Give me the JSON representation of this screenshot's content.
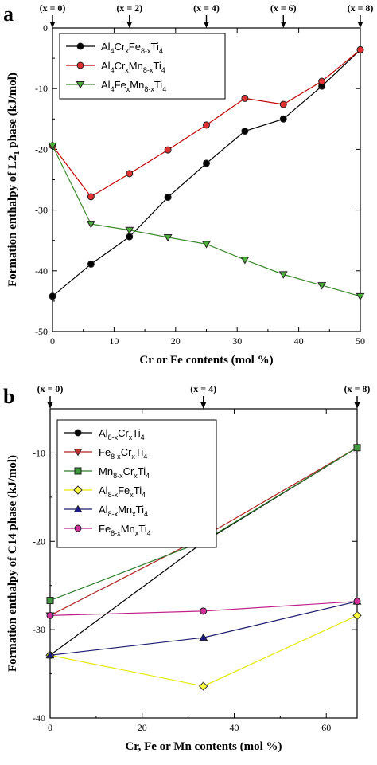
{
  "chart_data": [
    {
      "panel": "a",
      "type": "line",
      "xlabel": "Cr or Fe contents (mol %)",
      "ylabel_main": "Formation enthalpy of L2",
      "ylabel_sub": "1",
      "ylabel_end": " phase (kJ/mol)",
      "xlim": [
        0,
        50
      ],
      "ylim": [
        -50,
        0
      ],
      "xticks": [
        0,
        10,
        20,
        30,
        40,
        50
      ],
      "yticks": [
        0,
        -10,
        -20,
        -30,
        -40,
        -50
      ],
      "top_markers": [
        {
          "label": "(x = 0)",
          "x": 0
        },
        {
          "label": "(x = 2)",
          "x": 12.5
        },
        {
          "label": "(x = 4)",
          "x": 25
        },
        {
          "label": "(x = 6)",
          "x": 37.5
        },
        {
          "label": "(x = 8)",
          "x": 50
        }
      ],
      "legend_position": "top-left",
      "series": [
        {
          "name": "Al4CrxFe8-xTi4",
          "name_parts": [
            [
              "Al",
              ""
            ],
            [
              "4",
              "sub"
            ],
            [
              "Cr",
              ""
            ],
            [
              "x",
              "sub"
            ],
            [
              "Fe",
              ""
            ],
            [
              "8-x",
              "sub"
            ],
            [
              "Ti",
              ""
            ],
            [
              "4",
              "sub"
            ]
          ],
          "color": "#000000",
          "fill": "#000000",
          "marker": "circle",
          "x": [
            0,
            6.25,
            12.5,
            18.75,
            25,
            31.25,
            37.5,
            43.75,
            50
          ],
          "y": [
            -44.2,
            -38.9,
            -34.4,
            -27.9,
            -22.3,
            -17.0,
            -15.0,
            -9.6,
            -3.6
          ]
        },
        {
          "name": "Al4CrxMn8-xTi4",
          "name_parts": [
            [
              "Al",
              ""
            ],
            [
              "4",
              "sub"
            ],
            [
              "Cr",
              ""
            ],
            [
              "x",
              "sub"
            ],
            [
              "Mn",
              ""
            ],
            [
              "8-x",
              "sub"
            ],
            [
              "Ti",
              ""
            ],
            [
              "4",
              "sub"
            ]
          ],
          "color": "#c00000",
          "fill": "#e03030",
          "marker": "circle",
          "x": [
            0,
            6.25,
            12.5,
            18.75,
            25,
            31.25,
            37.5,
            43.75,
            50
          ],
          "y": [
            -19.4,
            -27.8,
            -24.0,
            -20.1,
            -16.0,
            -11.6,
            -12.6,
            -8.8,
            -3.6
          ]
        },
        {
          "name": "Al4FexMn8-xTi4",
          "name_parts": [
            [
              "Al",
              ""
            ],
            [
              "4",
              "sub"
            ],
            [
              "Fe",
              ""
            ],
            [
              "x",
              "sub"
            ],
            [
              "Mn",
              ""
            ],
            [
              "8-x",
              "sub"
            ],
            [
              "Ti",
              ""
            ],
            [
              "4",
              "sub"
            ]
          ],
          "color": "#3a8a2a",
          "fill": "#4caf3a",
          "marker": "triangle-down",
          "x": [
            0,
            6.25,
            12.5,
            18.75,
            25,
            31.25,
            37.5,
            43.75,
            50
          ],
          "y": [
            -19.4,
            -32.3,
            -33.3,
            -34.5,
            -35.6,
            -38.2,
            -40.6,
            -42.4,
            -44.2
          ]
        }
      ]
    },
    {
      "panel": "b",
      "type": "line",
      "xlabel": "Cr, Fe or Mn contents (mol %)",
      "ylabel_main": "Formation enthalpy of C14 phase (kJ/mol)",
      "ylabel_sub": "",
      "ylabel_end": "",
      "xlim": [
        0,
        66.7
      ],
      "ylim": [
        -40,
        -5
      ],
      "xticks": [
        0,
        20,
        40,
        60
      ],
      "yticks": [
        -10,
        -20,
        -30,
        -40
      ],
      "top_markers": [
        {
          "label": "(x = 0)",
          "x": 0
        },
        {
          "label": "(x = 4)",
          "x": 33.3
        },
        {
          "label": "(x = 8)",
          "x": 66.7
        }
      ],
      "legend_position": "top-left",
      "series": [
        {
          "name": "Al8-xCrxTi4",
          "name_parts": [
            [
              "Al",
              ""
            ],
            [
              "8-x",
              "sub"
            ],
            [
              "Cr",
              ""
            ],
            [
              "x",
              "sub"
            ],
            [
              "Ti",
              ""
            ],
            [
              "4",
              "sub"
            ]
          ],
          "color": "#000000",
          "fill": "#000000",
          "marker": "circle",
          "x": [
            0,
            33.3,
            66.7
          ],
          "y": [
            -32.9,
            -20.1,
            -9.4
          ]
        },
        {
          "name": "Fe8-xCrxTi4",
          "name_parts": [
            [
              "Fe",
              ""
            ],
            [
              "8-x",
              "sub"
            ],
            [
              "Cr",
              ""
            ],
            [
              "x",
              "sub"
            ],
            [
              "Ti",
              ""
            ],
            [
              "4",
              "sub"
            ]
          ],
          "color": "#b02020",
          "fill": "#c03030",
          "marker": "triangle-down",
          "x": [
            0,
            33.3,
            66.7
          ],
          "y": [
            -28.4,
            -19.5,
            -9.4
          ]
        },
        {
          "name": "Mn8-xCrxTi4",
          "name_parts": [
            [
              "Mn",
              ""
            ],
            [
              "8-x",
              "sub"
            ],
            [
              "Cr",
              ""
            ],
            [
              "x",
              "sub"
            ],
            [
              "Ti",
              ""
            ],
            [
              "4",
              "sub"
            ]
          ],
          "color": "#2e7d2e",
          "fill": "#3f9a3f",
          "marker": "square",
          "x": [
            0,
            33.3,
            66.7
          ],
          "y": [
            -26.7,
            -20.0,
            -9.4
          ]
        },
        {
          "name": "Al8-xFexTi4",
          "name_parts": [
            [
              "Al",
              ""
            ],
            [
              "8-x",
              "sub"
            ],
            [
              "Fe",
              ""
            ],
            [
              "x",
              "sub"
            ],
            [
              "Ti",
              ""
            ],
            [
              "4",
              "sub"
            ]
          ],
          "color": "#e6e600",
          "fill": "#ffff40",
          "marker": "diamond",
          "x": [
            0,
            33.3,
            66.7
          ],
          "y": [
            -32.9,
            -36.4,
            -28.4
          ]
        },
        {
          "name": "Al8-xMnxTi4",
          "name_parts": [
            [
              "Al",
              ""
            ],
            [
              "8-x",
              "sub"
            ],
            [
              "Mn",
              ""
            ],
            [
              "x",
              "sub"
            ],
            [
              "Ti",
              ""
            ],
            [
              "4",
              "sub"
            ]
          ],
          "color": "#1a1a6e",
          "fill": "#1a1a8a",
          "marker": "triangle-up",
          "x": [
            0,
            33.3,
            66.7
          ],
          "y": [
            -32.9,
            -30.9,
            -26.8
          ]
        },
        {
          "name": "Fe8-xMnxTi4",
          "name_parts": [
            [
              "Fe",
              ""
            ],
            [
              "8-x",
              "sub"
            ],
            [
              "Mn",
              ""
            ],
            [
              "x",
              "sub"
            ],
            [
              "Ti",
              ""
            ],
            [
              "4",
              "sub"
            ]
          ],
          "color": "#c0208a",
          "fill": "#d0309a",
          "marker": "circle",
          "x": [
            0,
            33.3,
            66.7
          ],
          "y": [
            -28.4,
            -27.9,
            -26.8
          ]
        }
      ]
    }
  ]
}
